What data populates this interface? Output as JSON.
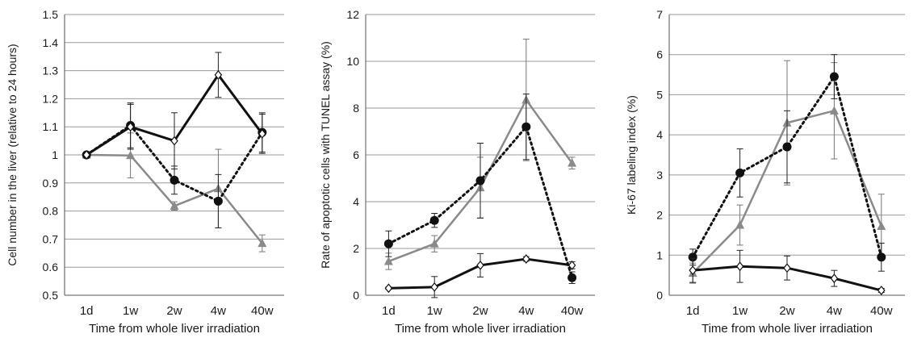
{
  "chart_data": [
    {
      "type": "line",
      "title": "",
      "xlabel": "Time from whole liver irradiation",
      "ylabel": "Cell number in the liver (relative to 24 hours)",
      "categories": [
        "1d",
        "1w",
        "2w",
        "4w",
        "40w"
      ],
      "ylim": [
        0.5,
        1.5
      ],
      "yticks": [
        "0.5",
        "0.6",
        "0.7",
        "0.8",
        "0.9",
        "1",
        "1.1",
        "1.2",
        "1.3",
        "1.4",
        "1.5"
      ],
      "grid": true,
      "legend": "none",
      "series": [
        {
          "style": "solid-black-diamond",
          "values": [
            1.0,
            1.1,
            1.05,
            1.285,
            1.075
          ],
          "error": [
            0.0,
            0.08,
            0.1,
            0.08,
            0.07
          ]
        },
        {
          "style": "dotted-black-circle",
          "values": [
            1.0,
            1.105,
            0.91,
            0.835,
            1.08
          ],
          "error": [
            0.0,
            0.08,
            0.05,
            0.095,
            0.07
          ]
        },
        {
          "style": "solid-gray-triangle",
          "values": [
            1.0,
            0.998,
            0.818,
            0.88,
            0.685
          ],
          "error": [
            0.0,
            0.08,
            0.015,
            0.14,
            0.03
          ]
        }
      ]
    },
    {
      "type": "line",
      "title": "",
      "xlabel": "Time from whole liver irradiation",
      "ylabel": "Rate of apoptotic cells  with TUNEL assay  (%)",
      "categories": [
        "1d",
        "1w",
        "2w",
        "4w",
        "40w"
      ],
      "ylim": [
        0,
        12
      ],
      "yticks": [
        "0",
        "2",
        "4",
        "6",
        "8",
        "10",
        "12"
      ],
      "grid": true,
      "legend": "none",
      "series": [
        {
          "style": "solid-black-diamond",
          "values": [
            0.3,
            0.35,
            1.28,
            1.55,
            1.28
          ],
          "error": [
            0.05,
            0.45,
            0.5,
            0.1,
            0.15
          ]
        },
        {
          "style": "dotted-black-circle",
          "values": [
            2.2,
            3.2,
            4.9,
            7.2,
            0.75
          ],
          "error": [
            0.55,
            0.3,
            1.6,
            1.4,
            0.25
          ]
        },
        {
          "style": "solid-gray-triangle",
          "values": [
            1.45,
            2.2,
            4.6,
            8.35,
            5.65
          ],
          "error": [
            0.35,
            0.35,
            1.3,
            2.6,
            0.25
          ]
        }
      ]
    },
    {
      "type": "line",
      "title": "",
      "xlabel": "Time from whole liver irradiation",
      "ylabel": "Ki-67 labeling index (%)",
      "categories": [
        "1d",
        "1w",
        "2w",
        "4w",
        "40w"
      ],
      "ylim": [
        0,
        7
      ],
      "yticks": [
        "0",
        "1",
        "2",
        "3",
        "4",
        "5",
        "6",
        "7"
      ],
      "grid": true,
      "legend": "none",
      "series": [
        {
          "style": "solid-black-diamond",
          "values": [
            0.62,
            0.72,
            0.68,
            0.42,
            0.12
          ],
          "error": [
            0.3,
            0.4,
            0.3,
            0.2,
            0.05
          ]
        },
        {
          "style": "dotted-black-circle",
          "values": [
            0.95,
            3.05,
            3.7,
            5.45,
            0.95
          ],
          "error": [
            0.2,
            0.6,
            0.9,
            0.55,
            0.35
          ]
        },
        {
          "style": "solid-gray-triangle",
          "values": [
            0.55,
            1.75,
            4.3,
            4.6,
            1.72
          ],
          "error": [
            0.25,
            0.5,
            1.55,
            1.2,
            0.8
          ]
        }
      ]
    }
  ],
  "colors": {
    "solid_black": "#111111",
    "gray": "#8a8a8a",
    "grid": "#9a9a9a",
    "axis": "#555555",
    "text": "#1a1a1a"
  }
}
